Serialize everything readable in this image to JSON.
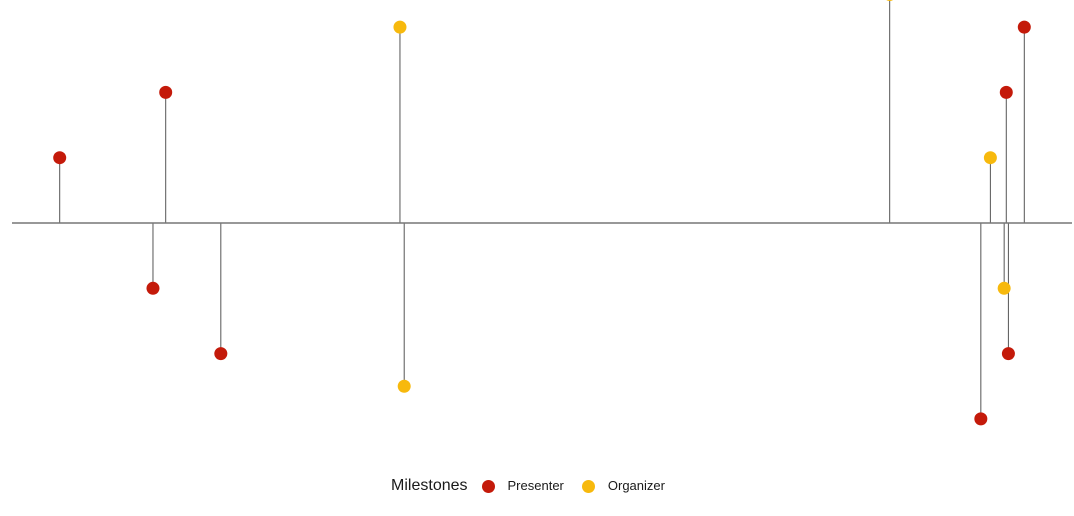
{
  "chart_data": {
    "type": "scatter",
    "subtype": "timeline-lollipop",
    "legend": {
      "title": "Milestones",
      "placement": "bottom",
      "entries": [
        {
          "name": "Presenter",
          "color": "#C41A0A"
        },
        {
          "name": "Organizer",
          "color": "#F7B90D"
        }
      ]
    },
    "xlim": [
      0,
      100
    ],
    "ylim": [
      -4,
      4
    ],
    "grid": false,
    "baseline": 0,
    "series": [
      {
        "name": "Presenter",
        "color": "#C41A0A",
        "points": [
          {
            "x": 4.5,
            "y": 1
          },
          {
            "x": 13.3,
            "y": -1
          },
          {
            "x": 14.5,
            "y": 2
          },
          {
            "x": 19.7,
            "y": -2
          },
          {
            "x": 91.4,
            "y": -3
          },
          {
            "x": 93.8,
            "y": 2
          },
          {
            "x": 94.0,
            "y": -2
          },
          {
            "x": 95.5,
            "y": 3
          }
        ]
      },
      {
        "name": "Organizer",
        "color": "#F7B90D",
        "points": [
          {
            "x": 36.6,
            "y": 3
          },
          {
            "x": 37.0,
            "y": -2.5
          },
          {
            "x": 82.8,
            "y": 3.5
          },
          {
            "x": 92.3,
            "y": 1
          },
          {
            "x": 93.6,
            "y": -1
          }
        ]
      }
    ]
  }
}
